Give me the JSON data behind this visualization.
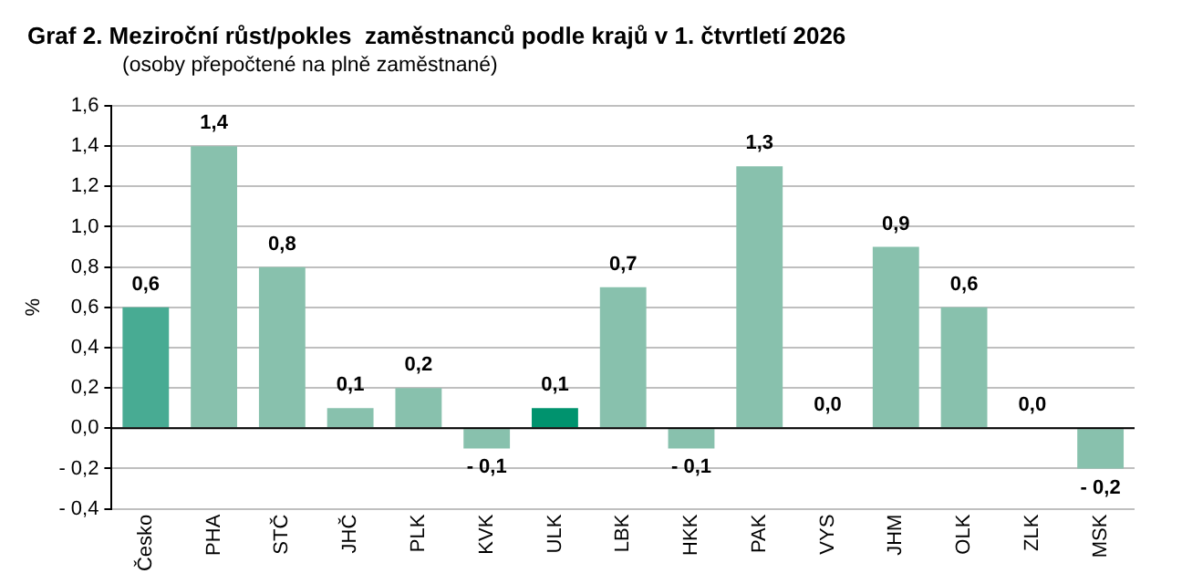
{
  "chart_data": {
    "type": "bar",
    "title": "Graf 2. Meziroční růst/pokles  zaměstnanců podle krajů v 1. čtvrtletí 2026",
    "subtitle": "(osoby přepočtené na plně zaměstnané)",
    "ylabel": "%",
    "categories": [
      "Česko",
      "PHA",
      "STČ",
      "JHČ",
      "PLK",
      "KVK",
      "ULK",
      "LBK",
      "HKK",
      "PAK",
      "VYS",
      "JHM",
      "OLK",
      "ZLK",
      "MSK"
    ],
    "values": [
      0.6,
      1.4,
      0.8,
      0.1,
      0.2,
      -0.1,
      0.1,
      0.7,
      -0.1,
      1.3,
      0.0,
      0.9,
      0.6,
      0.0,
      -0.2
    ],
    "colors": [
      "#48ab93",
      "#88c1ad",
      "#88c1ad",
      "#88c1ad",
      "#88c1ad",
      "#88c1ad",
      "#00936e",
      "#88c1ad",
      "#88c1ad",
      "#88c1ad",
      "#88c1ad",
      "#88c1ad",
      "#88c1ad",
      "#88c1ad",
      "#88c1ad"
    ],
    "value_labels": [
      "0,6",
      "1,4",
      "0,8",
      "0,1",
      "0,2",
      "- 0,1",
      "0,1",
      "0,7",
      "- 0,1",
      "1,3",
      "0,0",
      "0,9",
      "0,6",
      "0,0",
      "- 0,2"
    ],
    "ylim": [
      -0.4,
      1.6
    ],
    "yticks": [
      {
        "value": -0.4,
        "label": "- 0,4"
      },
      {
        "value": -0.2,
        "label": "- 0,2"
      },
      {
        "value": 0,
        "label": "0,0"
      },
      {
        "value": 0.2,
        "label": "0,2"
      },
      {
        "value": 0.4,
        "label": "0,4"
      },
      {
        "value": 0.6,
        "label": "0,6"
      },
      {
        "value": 0.8,
        "label": "0,8"
      },
      {
        "value": 1.0,
        "label": "1,0"
      },
      {
        "value": 1.2,
        "label": "1,2"
      },
      {
        "value": 1.4,
        "label": "1,4"
      },
      {
        "value": 1.6,
        "label": "1,6"
      }
    ],
    "grid": "y",
    "legend": false
  }
}
